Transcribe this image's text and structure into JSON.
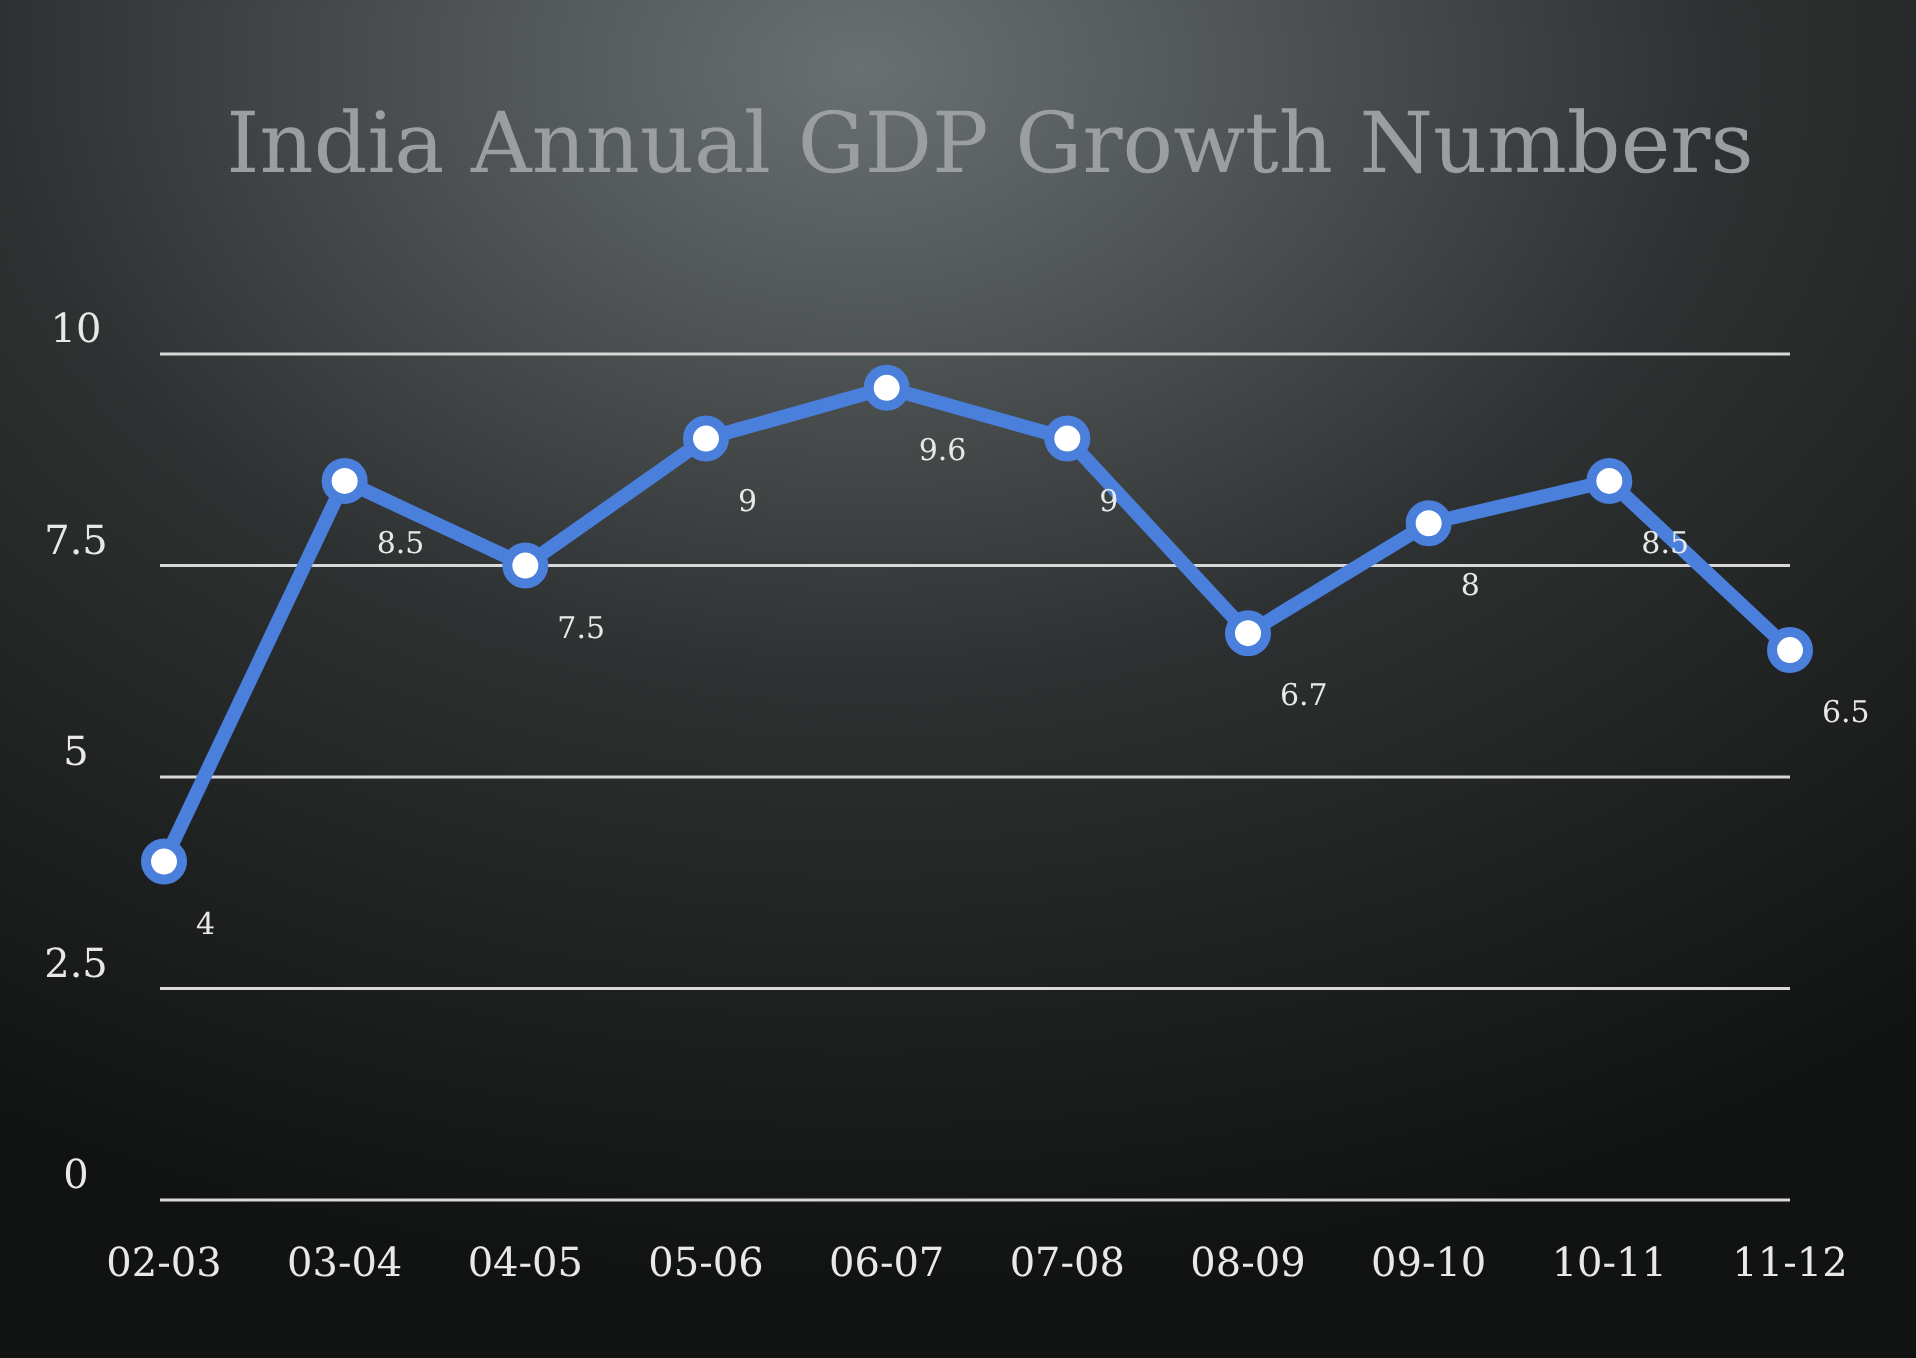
{
  "chart_data": {
    "type": "line",
    "title": "India Annual GDP Growth Numbers",
    "categories": [
      "02-03",
      "03-04",
      "04-05",
      "05-06",
      "06-07",
      "07-08",
      "08-09",
      "09-10",
      "10-11",
      "11-12"
    ],
    "series": [
      {
        "color": "#4a7fdc",
        "values": [
          4,
          8.5,
          7.5,
          9,
          9.6,
          9,
          6.7,
          8,
          8.5,
          6.5
        ]
      }
    ],
    "ylim": [
      0,
      10
    ],
    "yticks": [
      0,
      2.5,
      5,
      7.5,
      10
    ],
    "grid": "y",
    "marker": "circle",
    "line_style": "solid",
    "data_labels": true
  }
}
